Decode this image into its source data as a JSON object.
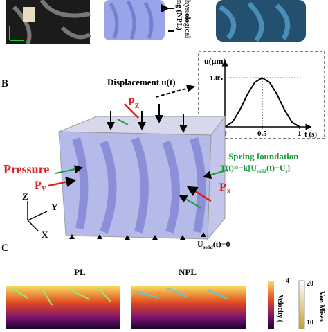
{
  "top_panels": {
    "caption_lines": [
      "hysiological",
      "ng (NPL)"
    ]
  },
  "panel_b": {
    "label": "B",
    "displacement": "Displacement u(t)",
    "pz": [
      "P",
      "Z"
    ],
    "pressure": "Pressure",
    "py": [
      "P",
      "Y"
    ],
    "px": [
      "P",
      "X"
    ],
    "spring": "Spring foundation",
    "spring_eq": [
      "T(t)=−k[U",
      "solid",
      "(t)−U",
      "s",
      "]"
    ],
    "boundary": [
      "U",
      "solid",
      "(t)=0"
    ],
    "axes": [
      "Z",
      "Y",
      "X"
    ]
  },
  "chart_data": {
    "type": "line",
    "y_label": "u(μm)",
    "x_label": "t (s)",
    "x": [
      0,
      0.1,
      0.2,
      0.3,
      0.4,
      0.5,
      0.6,
      0.7,
      0.8,
      0.9,
      1
    ],
    "values": [
      0,
      0.1,
      0.36,
      0.69,
      0.95,
      1.05,
      0.95,
      0.69,
      0.36,
      0.1,
      0
    ],
    "color": "#000000",
    "xlim": [
      0,
      1.15
    ],
    "ylim": [
      0,
      1.35
    ],
    "xticks": [
      0,
      0.5,
      1
    ],
    "yticks": [
      1.05
    ]
  },
  "panel_c": {
    "label": "C",
    "titles": [
      "PL",
      "NPL"
    ],
    "colorbars": [
      {
        "label": "Velocity (",
        "ticks": [
          "4"
        ]
      },
      {
        "label": "Von Mises",
        "ticks": [
          "20",
          "10"
        ]
      }
    ]
  }
}
